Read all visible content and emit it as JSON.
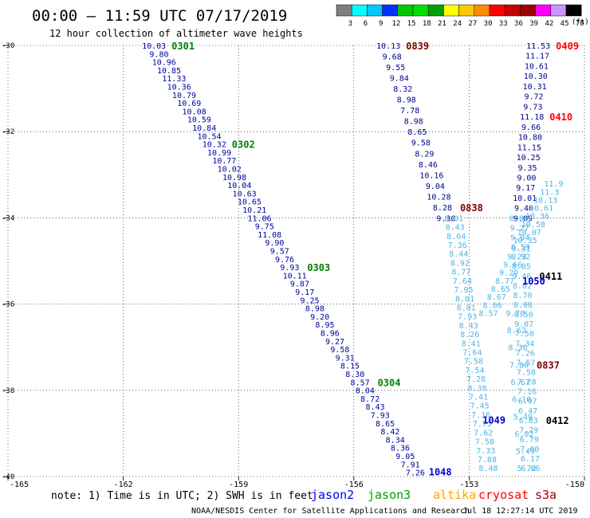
{
  "header": {
    "title": "00:00 – 11:59 UTC 07/17/2019",
    "subtitle": "12 hour collection of altimeter wave heights"
  },
  "legend_scale": {
    "unit": "(ft)",
    "ticks": [
      "3",
      "6",
      "9",
      "12",
      "15",
      "18",
      "21",
      "24",
      "27",
      "30",
      "33",
      "36",
      "39",
      "42",
      "45",
      "70"
    ],
    "colors": [
      "#7f7f7f",
      "#00ffff",
      "#00c8ff",
      "#0032ff",
      "#00c800",
      "#00e100",
      "#00a000",
      "#ffff00",
      "#ffc800",
      "#ff8c00",
      "#ff0000",
      "#c80000",
      "#a00000",
      "#ff00ff",
      "#c896ff",
      "#000000"
    ]
  },
  "footer": {
    "note": "note: 1) Time is in UTC; 2) SWH is in feet",
    "satellites": [
      {
        "name": "jason2",
        "color": "#0000ff"
      },
      {
        "name": "jason3",
        "color": "#00a000"
      },
      {
        "name": "altika",
        "color": "#ffa500"
      },
      {
        "name": "cryosat",
        "color": "#ff0000"
      },
      {
        "name": "s3a",
        "color": "#a00000"
      }
    ],
    "credit": "NOAA/NESDIS Center for Satellite Applications and Research",
    "timestamp": "Jul 18 12:27:14 UTC 2019"
  },
  "chart_data": {
    "type": "scatter",
    "xlim": [
      -165,
      -150
    ],
    "ylim": [
      -40,
      -30
    ],
    "x_ticks": [
      "-165",
      "-162",
      "-159",
      "-156",
      "-153",
      "-150"
    ],
    "y_ticks": [
      "-30",
      "-32",
      "-34",
      "-36",
      "-38",
      "-40"
    ],
    "series": [
      {
        "name": "jason3",
        "text_color": "#0000a0",
        "time_color": "#008000",
        "lon_start": -161.2,
        "lat_start": -30.0,
        "lon_end": -154.4,
        "lat_end": -39.9,
        "values": [
          "10.03",
          "9.80",
          "10.96",
          "10.85",
          "11.33",
          "10.36",
          "10.79",
          "10.69",
          "10.08",
          "10.59",
          "10.84",
          "10.54",
          "10.32",
          "10.99",
          "10.77",
          "10.02",
          "10.98",
          "10.04",
          "10.63",
          "10.65",
          "10.21",
          "11.06",
          "9.75",
          "11.08",
          "9.90",
          "9.57",
          "9.76",
          "9.93",
          "10.11",
          "9.87",
          "9.17",
          "9.25",
          "8.98",
          "9.20",
          "8.95",
          "8.96",
          "9.27",
          "9.58",
          "9.31",
          "8.15",
          "8.30",
          "8.57",
          "8.04",
          "8.72",
          "8.43",
          "7.93",
          "8.65",
          "8.42",
          "8.34",
          "8.36",
          "9.05",
          "7.91",
          "7.26"
        ],
        "time_marks": [
          {
            "label": "0301",
            "idx": 0
          },
          {
            "label": "0302",
            "idx": 12
          },
          {
            "label": "0303",
            "idx": 27
          },
          {
            "label": "0304",
            "idx": 41
          }
        ]
      },
      {
        "name": "s3a",
        "text_color": "#00008b",
        "time_color": "#800000",
        "lon_start": -155.1,
        "lat_start": -30.0,
        "lon_end": -153.6,
        "lat_end": -34.0,
        "values": [
          "10.13",
          "9.68",
          "9.55",
          "9.84",
          "8.32",
          "8.98",
          "7.78",
          "8.98",
          "8.65",
          "9.58",
          "8.29",
          "8.46",
          "10.16",
          "9.04",
          "10.28",
          "8.28",
          "9.30"
        ],
        "time_marks": [
          {
            "label": "0839",
            "idx": 0
          },
          {
            "label": "0838",
            "idx": 15
          }
        ]
      },
      {
        "name": "s3a-blue",
        "text_color": "#4fb4e6",
        "lon_start": -153.4,
        "lat_start": -34.0,
        "lon_end": -152.5,
        "lat_end": -39.8,
        "values": [
          "8.01",
          "8.43",
          "8.64",
          "7.36",
          "8.44",
          "8.92",
          "8.77",
          "7.64",
          "7.95",
          "8.01",
          "8.01",
          "7.93",
          "8.43",
          "8.26",
          "8.41",
          "7.64",
          "7.58",
          "7.54",
          "7.28",
          "8.38",
          "7.41",
          "7.45",
          "7.16",
          "7.75",
          "7.62",
          "7.58",
          "7.33",
          "7.88",
          "8.48"
        ],
        "time_marks": []
      },
      {
        "name": "cryosat",
        "text_color": "#00008b",
        "time_color": "#ff0000",
        "lon_start": -151.2,
        "lat_start": -30.0,
        "lon_end": -151.6,
        "lat_end": -34.0,
        "values": [
          "11.53",
          "11.17",
          "10.61",
          "10.30",
          "10.31",
          "9.72",
          "9.73",
          "11.18",
          "9.66",
          "10.80",
          "11.15",
          "10.25",
          "9.35",
          "9.00",
          "9.17",
          "10.01",
          "9.40",
          "9.09"
        ],
        "time_marks": [
          {
            "label": "0409",
            "idx": 0
          },
          {
            "label": "0410",
            "idx": 7
          }
        ]
      },
      {
        "name": "cryosat-blue",
        "text_color": "#4fb4e6",
        "lon_start": -151.7,
        "lat_start": -34.0,
        "lon_end": -151.4,
        "lat_end": -39.8,
        "values": [
          "8.89",
          "9.27",
          "9.94",
          "8.59",
          "8.92",
          "8.85",
          "9.46",
          "8.62",
          "8.70",
          "8.08",
          "8.50",
          "9.07",
          "7.50",
          "7.34",
          "7.26",
          "7.57",
          "7.58",
          "7.28",
          "7.16",
          "6.97",
          "6.47",
          "6.83",
          "7.29",
          "6.79",
          "7.00",
          "6.17",
          "6.66"
        ],
        "time_marks": [
          {
            "label": "0411",
            "idx": 6
          },
          {
            "label": "0412",
            "idx": 21
          }
        ]
      },
      {
        "name": "jason2",
        "text_color": "#4fb4e6",
        "time_color": "#0000cc",
        "lon_start": -150.8,
        "lat_start": -33.2,
        "lon_end": -152.5,
        "lat_end": -36.2,
        "values": [
          "11.9",
          "11.3",
          "10.13",
          "10.61",
          "10.36",
          "10.58",
          "10.07",
          "10.35",
          "9.31",
          "9.23",
          "9.66",
          "9.20",
          "8.77",
          "8.65",
          "8.67",
          "8.66",
          "8.57"
        ],
        "time_marks": [
          {
            "label": "1050",
            "idx": 12
          }
        ]
      },
      {
        "name": "s3a-lower",
        "text_color": "#4fb4e6",
        "time_color": "#800000",
        "lon_start": -151.8,
        "lat_start": -36.2,
        "lon_end": -151.5,
        "lat_end": -39.8,
        "values": [
          "9.70",
          "8.62",
          "8.36",
          "7.80",
          "6.67",
          "6.10",
          "5.49",
          "6.02",
          "5.49",
          "5.72"
        ],
        "time_marks": [
          {
            "label": "0837",
            "idx": 3
          }
        ]
      }
    ],
    "pass_labels": [
      {
        "label": "1049",
        "lon": -152.9,
        "lat": -38.7,
        "color": "#0000cc"
      },
      {
        "label": "1048",
        "lon": -154.3,
        "lat": -39.9,
        "color": "#0000cc"
      }
    ]
  }
}
